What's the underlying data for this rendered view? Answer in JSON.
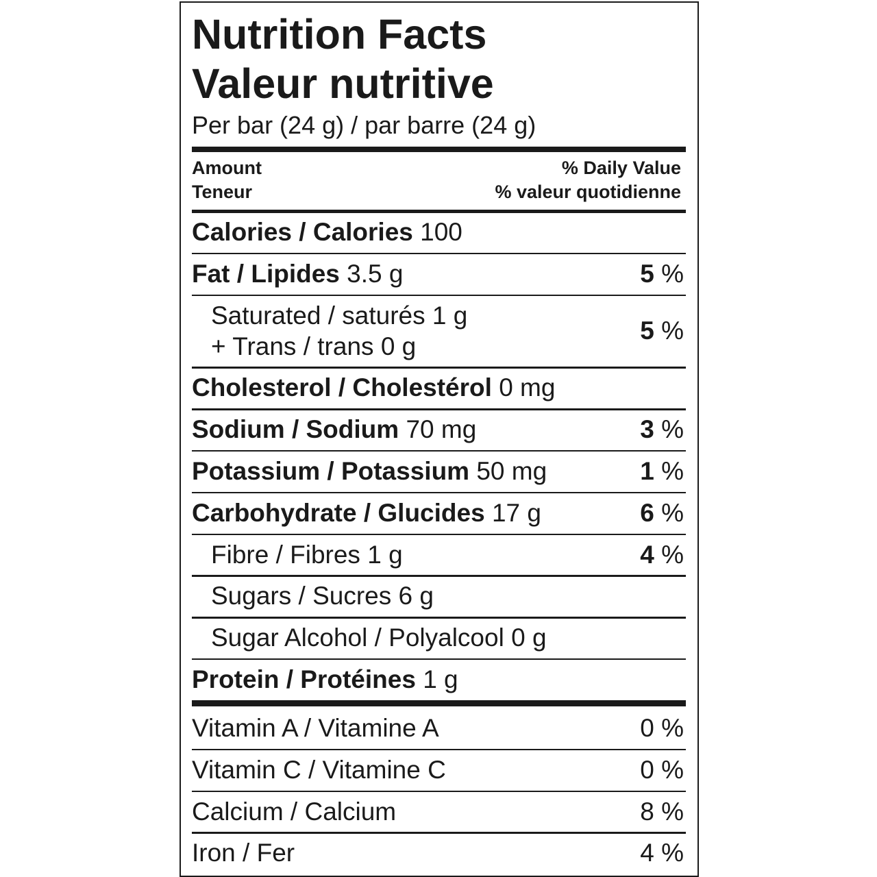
{
  "header": {
    "title": "Nutrition Facts",
    "title_fr": "Valeur nutritive",
    "serving": "Per bar (24 g) / par barre (24 g)"
  },
  "columns": {
    "amount": "Amount",
    "amount_fr": "Teneur",
    "dv": "% Daily Value",
    "dv_fr": "% valeur quotidienne"
  },
  "nutrients": [
    {
      "name": "Calories / Calories",
      "amount": "100"
    },
    {
      "name": "Fat / Lipides",
      "amount": "3.5 g",
      "dv": "5",
      "unit": "%",
      "subrows": [
        {
          "lines": [
            {
              "name": "Saturated / saturés",
              "amount": "1 g"
            },
            {
              "name": "+ Trans / trans",
              "amount": "0 g"
            }
          ],
          "dv": "5",
          "unit": "%"
        }
      ]
    },
    {
      "name": "Cholesterol / Cholestérol",
      "amount": "0 mg"
    },
    {
      "name": "Sodium / Sodium",
      "amount": "70 mg",
      "dv": "3",
      "unit": "%"
    },
    {
      "name": "Potassium / Potassium",
      "amount": "50 mg",
      "dv": "1",
      "unit": "%"
    },
    {
      "name": "Carbohydrate / Glucides",
      "amount": "17 g",
      "dv": "6",
      "unit": "%",
      "subrows": [
        {
          "name": "Fibre / Fibres",
          "amount": "1 g",
          "dv": "4",
          "unit": "%"
        },
        {
          "name": "Sugars / Sucres",
          "amount": "6 g"
        },
        {
          "name": "Sugar Alcohol / Polyalcool",
          "amount": "0 g"
        }
      ]
    },
    {
      "name": "Protein / Protéines",
      "amount": "1 g"
    }
  ],
  "vitamins": [
    {
      "name": "Vitamin A / Vitamine A",
      "dv": "0",
      "unit": "%"
    },
    {
      "name": "Vitamin C / Vitamine C",
      "dv": "0",
      "unit": "%"
    },
    {
      "name": "Calcium / Calcium",
      "dv": "8",
      "unit": "%"
    },
    {
      "name": "Iron / Fer",
      "dv": "4",
      "unit": "%"
    }
  ]
}
